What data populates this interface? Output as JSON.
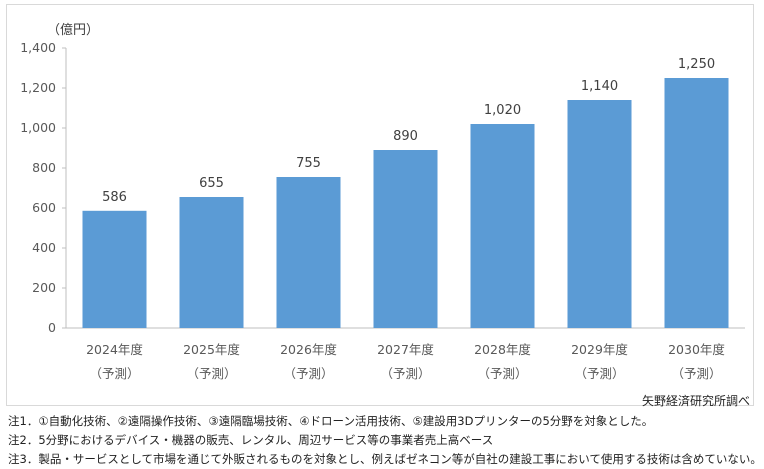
{
  "chart_data": {
    "type": "bar",
    "unit_label": "（億円）",
    "categories": [
      "2024年度",
      "2025年度",
      "2026年度",
      "2027年度",
      "2028年度",
      "2029年度",
      "2030年度"
    ],
    "category_sub": [
      "（予測）",
      "（予測）",
      "（予測）",
      "（予測）",
      "（予測）",
      "（予測）",
      "（予測）"
    ],
    "values": [
      586,
      655,
      755,
      890,
      1020,
      1140,
      1250
    ],
    "value_labels": [
      "586",
      "655",
      "755",
      "890",
      "1,020",
      "1,140",
      "1,250"
    ],
    "y_ticks": [
      "0",
      "200",
      "400",
      "600",
      "800",
      "1,000",
      "1,200",
      "1,400"
    ],
    "ylim": [
      0,
      1400
    ],
    "bar_color": "#5b9bd5",
    "grid": false,
    "legend": "none"
  },
  "source": "矢野経済研究所調べ",
  "notes": [
    "注1．①自動化技術、②遠隔操作技術、③遠隔臨場技術、④ドローン活用技術、⑤建設用3Dプリンターの5分野を対象とした。",
    "注2．5分野におけるデバイス・機器の販売、レンタル、周辺サービス等の事業者売上高ベース",
    "注3．製品・サービスとして市場を通じて外販されるものを対象とし、例えばゼネコン等が自社の建設工事において使用する技術は含めていない。"
  ]
}
